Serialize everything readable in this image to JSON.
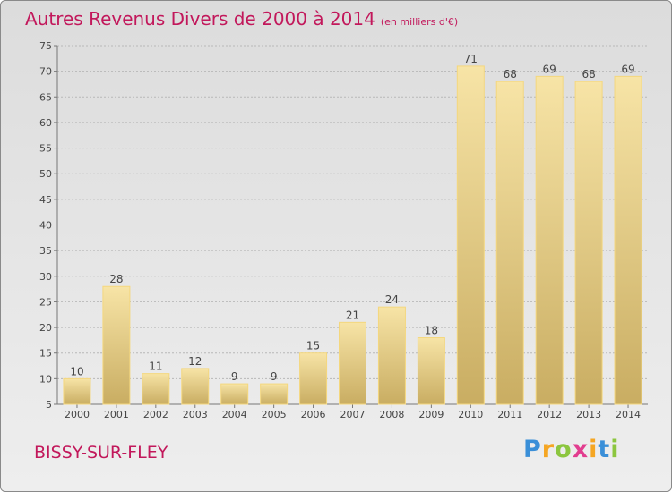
{
  "header": {
    "title": "Autres Revenus Divers de 2000 à 2014",
    "subtitle": "(en milliers d'€)"
  },
  "footer": {
    "commune": "BISSY-SUR-FLEY",
    "brand_letters": [
      "P",
      "r",
      "o",
      "x",
      "i",
      "t",
      "i"
    ],
    "brand_colors": [
      "#3a8fd8",
      "#f5a623",
      "#8cc63f",
      "#e23d8f",
      "#f5a623",
      "#3a8fd8",
      "#8cc63f"
    ]
  },
  "colors": {
    "title": "#c2185b",
    "bar_light": "#f7e4a6",
    "bar_dark": "#c9ad62",
    "bar_edge": "#f4d77e"
  },
  "chart_data": {
    "type": "bar",
    "categories": [
      "2000",
      "2001",
      "2002",
      "2003",
      "2004",
      "2005",
      "2006",
      "2007",
      "2008",
      "2009",
      "2010",
      "2011",
      "2012",
      "2013",
      "2014"
    ],
    "values": [
      10,
      28,
      11,
      12,
      9,
      9,
      15,
      21,
      24,
      18,
      71,
      68,
      69,
      68,
      69
    ],
    "title": "Autres Revenus Divers de 2000 à 2014",
    "subtitle": "(en milliers d'€)",
    "xlabel": "",
    "ylabel": "",
    "ylim": [
      5,
      75
    ],
    "yticks": [
      5,
      10,
      15,
      20,
      25,
      30,
      35,
      40,
      45,
      50,
      55,
      60,
      65,
      70,
      75
    ],
    "grid": true,
    "grid_axis": "y",
    "grid_style": "dashed"
  }
}
